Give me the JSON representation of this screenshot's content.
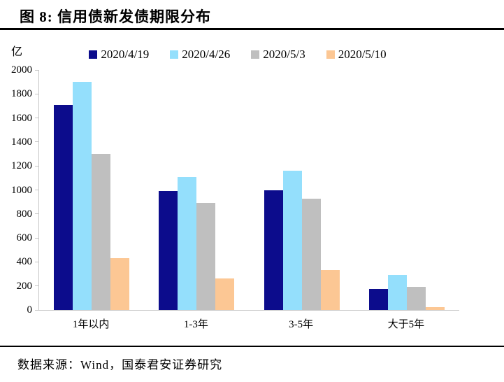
{
  "header": {
    "title": "图 8:  信用债新发债期限分布"
  },
  "chart_data": {
    "type": "bar",
    "title": "信用债新发债期限分布",
    "unit": "亿",
    "categories": [
      "1年以内",
      "1-3年",
      "3-5年",
      "大于5年"
    ],
    "series": [
      {
        "name": "2020/4/19",
        "color": "#0c0c8c",
        "values": [
          1710,
          990,
          1000,
          175
        ]
      },
      {
        "name": "2020/4/26",
        "color": "#94dffc",
        "values": [
          1900,
          1110,
          1160,
          290
        ]
      },
      {
        "name": "2020/5/3",
        "color": "#bfbfbf",
        "values": [
          1300,
          895,
          925,
          190
        ]
      },
      {
        "name": "2020/5/10",
        "color": "#fcc794",
        "values": [
          430,
          260,
          330,
          25
        ]
      }
    ],
    "ylim": [
      0,
      2000
    ],
    "ytick_step": 200,
    "legend_position": "top",
    "grid": false,
    "axis_color": "#c6c6c6"
  },
  "footer": {
    "source": "数据来源：Wind，国泰君安证券研究"
  }
}
